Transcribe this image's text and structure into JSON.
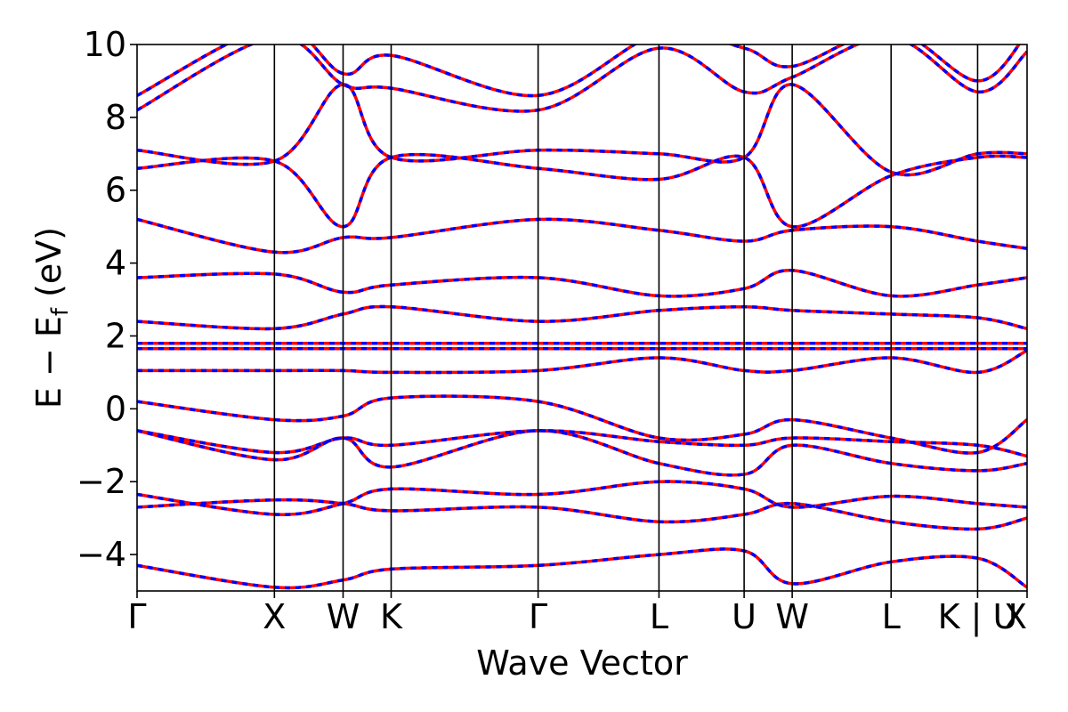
{
  "chart_data": {
    "type": "line",
    "title": "",
    "xlabel": "Wave Vector",
    "ylabel": "E − E",
    "ylabel_sub": "f",
    "ylabel_unit": " (eV)",
    "ylim": [
      -5,
      10
    ],
    "xlim": [
      0,
      6.48
    ],
    "yticks": [
      -4,
      -2,
      0,
      2,
      4,
      6,
      8,
      10
    ],
    "ytick_labels": [
      "−4",
      "−2",
      "0",
      "2",
      "4",
      "6",
      "8",
      "10"
    ],
    "kpoints": [
      {
        "label": "Γ",
        "x": 0.0
      },
      {
        "label": "X",
        "x": 1.0
      },
      {
        "label": "W",
        "x": 1.5
      },
      {
        "label": "K",
        "x": 1.85
      },
      {
        "label": "Γ",
        "x": 2.92
      },
      {
        "label": "L",
        "x": 3.8
      },
      {
        "label": "U",
        "x": 4.42
      },
      {
        "label": "W",
        "x": 4.77
      },
      {
        "label": "L",
        "x": 5.49
      },
      {
        "label": "K | U",
        "x": 6.12
      },
      {
        "label": "X",
        "x": 6.48
      }
    ],
    "grid": false,
    "series": [
      {
        "color": "#ff0000",
        "linestyle": "solid",
        "bands": [
          [
            -4.3,
            -4.9,
            -4.7,
            -4.4,
            -4.3,
            -4.0,
            -3.9,
            -4.8,
            -4.2,
            -4.1,
            -4.9
          ],
          [
            -2.7,
            -2.5,
            -2.6,
            -2.8,
            -2.7,
            -3.1,
            -2.9,
            -2.6,
            -3.1,
            -3.3,
            -3.0
          ],
          [
            -2.35,
            -2.9,
            -2.6,
            -2.2,
            -2.35,
            -2.0,
            -2.2,
            -2.7,
            -2.4,
            -2.6,
            -2.7
          ],
          [
            -0.6,
            -1.4,
            -0.8,
            -1.6,
            -0.6,
            -1.5,
            -1.8,
            -1.0,
            -1.5,
            -1.7,
            -1.5
          ],
          [
            -0.6,
            -1.2,
            -0.8,
            -1.0,
            -0.6,
            -0.9,
            -1.0,
            -0.8,
            -0.9,
            -1.0,
            -1.3
          ],
          [
            0.2,
            -0.3,
            -0.2,
            0.3,
            0.2,
            -0.8,
            -0.7,
            -0.3,
            -0.8,
            -1.2,
            -0.3
          ],
          [
            1.05,
            1.05,
            1.05,
            1.0,
            1.05,
            1.4,
            1.05,
            1.05,
            1.4,
            1.0,
            1.6
          ],
          [
            1.65,
            1.65,
            1.65,
            1.65,
            1.65,
            1.65,
            1.65,
            1.65,
            1.65,
            1.65,
            1.65
          ],
          [
            1.8,
            1.8,
            1.8,
            1.8,
            1.8,
            1.8,
            1.8,
            1.8,
            1.8,
            1.8,
            1.8
          ],
          [
            2.4,
            2.2,
            2.6,
            2.8,
            2.4,
            2.7,
            2.8,
            2.7,
            2.6,
            2.5,
            2.2
          ],
          [
            3.6,
            3.7,
            3.2,
            3.4,
            3.6,
            3.1,
            3.3,
            3.8,
            3.1,
            3.4,
            3.6
          ],
          [
            5.2,
            4.3,
            4.7,
            4.7,
            5.2,
            4.9,
            4.6,
            4.9,
            5.0,
            4.6,
            4.4
          ],
          [
            6.6,
            6.8,
            5.0,
            6.9,
            6.6,
            6.3,
            6.9,
            5.0,
            6.4,
            6.9,
            6.9
          ],
          [
            7.1,
            6.8,
            8.9,
            6.9,
            7.1,
            7.0,
            6.9,
            8.9,
            6.5,
            7.0,
            7.0
          ],
          [
            8.2,
            10.2,
            8.9,
            8.8,
            8.2,
            9.9,
            8.7,
            9.1,
            10.2,
            8.7,
            9.8
          ],
          [
            8.6,
            10.5,
            9.2,
            9.7,
            8.6,
            10.3,
            9.9,
            9.4,
            10.4,
            9.0,
            10.3
          ]
        ]
      },
      {
        "color": "#0000ff",
        "linestyle": "dashed",
        "bands": [
          [
            -4.3,
            -4.9,
            -4.7,
            -4.4,
            -4.3,
            -4.0,
            -3.9,
            -4.8,
            -4.2,
            -4.1,
            -4.9
          ],
          [
            -2.7,
            -2.5,
            -2.6,
            -2.8,
            -2.7,
            -3.1,
            -2.9,
            -2.6,
            -3.1,
            -3.3,
            -3.0
          ],
          [
            -2.35,
            -2.9,
            -2.6,
            -2.2,
            -2.35,
            -2.0,
            -2.2,
            -2.7,
            -2.4,
            -2.6,
            -2.7
          ],
          [
            -0.6,
            -1.4,
            -0.8,
            -1.6,
            -0.6,
            -1.5,
            -1.8,
            -1.0,
            -1.5,
            -1.7,
            -1.5
          ],
          [
            -0.6,
            -1.2,
            -0.8,
            -1.0,
            -0.6,
            -0.9,
            -1.0,
            -0.8,
            -0.9,
            -1.0,
            -1.3
          ],
          [
            0.2,
            -0.3,
            -0.2,
            0.3,
            0.2,
            -0.8,
            -0.7,
            -0.3,
            -0.8,
            -1.2,
            -0.3
          ],
          [
            1.05,
            1.05,
            1.05,
            1.0,
            1.05,
            1.4,
            1.05,
            1.05,
            1.4,
            1.0,
            1.6
          ],
          [
            1.65,
            1.65,
            1.65,
            1.65,
            1.65,
            1.65,
            1.65,
            1.65,
            1.65,
            1.65,
            1.65
          ],
          [
            1.8,
            1.8,
            1.8,
            1.8,
            1.8,
            1.8,
            1.8,
            1.8,
            1.8,
            1.8,
            1.8
          ],
          [
            2.4,
            2.2,
            2.6,
            2.8,
            2.4,
            2.7,
            2.8,
            2.7,
            2.6,
            2.5,
            2.2
          ],
          [
            3.6,
            3.7,
            3.2,
            3.4,
            3.6,
            3.1,
            3.3,
            3.8,
            3.1,
            3.4,
            3.6
          ],
          [
            5.2,
            4.3,
            4.7,
            4.7,
            5.2,
            4.9,
            4.6,
            4.9,
            5.0,
            4.6,
            4.4
          ],
          [
            6.6,
            6.8,
            5.0,
            6.9,
            6.6,
            6.3,
            6.9,
            5.0,
            6.4,
            6.9,
            6.9
          ],
          [
            7.1,
            6.8,
            8.9,
            6.9,
            7.1,
            7.0,
            6.9,
            8.9,
            6.5,
            7.0,
            7.0
          ],
          [
            8.2,
            10.2,
            8.9,
            8.8,
            8.2,
            9.9,
            8.7,
            9.1,
            10.2,
            8.7,
            9.8
          ],
          [
            8.6,
            10.5,
            9.2,
            9.7,
            8.6,
            10.3,
            9.9,
            9.4,
            10.4,
            9.0,
            10.3
          ]
        ]
      }
    ]
  }
}
